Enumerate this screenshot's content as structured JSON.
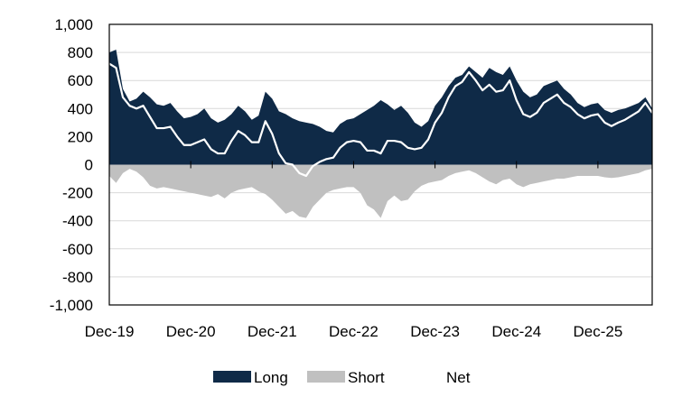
{
  "chart_data": {
    "type": "area",
    "title": "",
    "xlabel": "",
    "ylabel": "",
    "ylim": [
      -1000,
      1000
    ],
    "y_ticks": [
      1000,
      800,
      600,
      400,
      200,
      0,
      -200,
      -400,
      -600,
      -800,
      -1000
    ],
    "y_tick_labels": [
      "1,000",
      "800",
      "600",
      "400",
      "200",
      "0",
      "-200",
      "-400",
      "-600",
      "-800",
      "-1,000"
    ],
    "x_ticks": [
      "2019-12",
      "2020-12",
      "2021-12",
      "2022-12",
      "2023-12",
      "2024-12",
      "2025-12"
    ],
    "x_tick_labels": [
      "Dec-19",
      "Dec-20",
      "Dec-21",
      "Dec-22",
      "Dec-23",
      "Dec-24",
      "Dec-25"
    ],
    "x_range": [
      "2019-12",
      "2026-08"
    ],
    "grid": "horizontal",
    "legend_position": "bottom",
    "colors": {
      "long": "#0f2a47",
      "short": "#c0c0c0",
      "net": "#ffffff"
    },
    "x": [
      "2019-12",
      "2020-01",
      "2020-02",
      "2020-03",
      "2020-04",
      "2020-05",
      "2020-06",
      "2020-07",
      "2020-08",
      "2020-09",
      "2020-10",
      "2020-11",
      "2020-12",
      "2021-01",
      "2021-02",
      "2021-03",
      "2021-04",
      "2021-05",
      "2021-06",
      "2021-07",
      "2021-08",
      "2021-09",
      "2021-10",
      "2021-11",
      "2021-12",
      "2022-01",
      "2022-02",
      "2022-03",
      "2022-04",
      "2022-05",
      "2022-06",
      "2022-07",
      "2022-08",
      "2022-09",
      "2022-10",
      "2022-11",
      "2022-12",
      "2023-01",
      "2023-02",
      "2023-03",
      "2023-04",
      "2023-05",
      "2023-06",
      "2023-07",
      "2023-08",
      "2023-09",
      "2023-10",
      "2023-11",
      "2023-12",
      "2024-01",
      "2024-02",
      "2024-03",
      "2024-04",
      "2024-05",
      "2024-06",
      "2024-07",
      "2024-08",
      "2024-09",
      "2024-10",
      "2024-11",
      "2024-12",
      "2025-01",
      "2025-02",
      "2025-03",
      "2025-04",
      "2025-05",
      "2025-06",
      "2025-07",
      "2025-08",
      "2025-09",
      "2025-10",
      "2025-11",
      "2025-12",
      "2026-01",
      "2026-02",
      "2026-03",
      "2026-04",
      "2026-05",
      "2026-06",
      "2026-07",
      "2026-08"
    ],
    "series": [
      {
        "name": "Long",
        "values": [
          800,
          820,
          540,
          450,
          470,
          520,
          480,
          430,
          420,
          440,
          380,
          330,
          340,
          360,
          400,
          330,
          300,
          320,
          360,
          420,
          380,
          320,
          350,
          520,
          470,
          380,
          360,
          330,
          310,
          300,
          290,
          270,
          240,
          230,
          290,
          320,
          330,
          360,
          390,
          420,
          460,
          430,
          390,
          420,
          370,
          300,
          270,
          310,
          420,
          480,
          560,
          620,
          640,
          700,
          660,
          620,
          690,
          660,
          640,
          700,
          600,
          520,
          480,
          500,
          560,
          580,
          600,
          540,
          500,
          440,
          410,
          430,
          440,
          390,
          370,
          390,
          400,
          420,
          440,
          480,
          400
        ],
        "color": "#0f2a47"
      },
      {
        "name": "Short",
        "values": [
          -80,
          -130,
          -60,
          -30,
          -50,
          -90,
          -150,
          -170,
          -160,
          -170,
          -180,
          -190,
          -200,
          -210,
          -220,
          -230,
          -210,
          -240,
          -200,
          -180,
          -170,
          -160,
          -190,
          -210,
          -250,
          -300,
          -350,
          -330,
          -370,
          -380,
          -300,
          -250,
          -200,
          -180,
          -170,
          -160,
          -160,
          -200,
          -290,
          -320,
          -380,
          -260,
          -220,
          -260,
          -250,
          -190,
          -150,
          -130,
          -120,
          -110,
          -80,
          -60,
          -50,
          -40,
          -60,
          -90,
          -120,
          -140,
          -110,
          -100,
          -140,
          -160,
          -140,
          -130,
          -120,
          -110,
          -100,
          -100,
          -90,
          -80,
          -80,
          -80,
          -80,
          -90,
          -95,
          -90,
          -80,
          -70,
          -60,
          -40,
          -30
        ],
        "color": "#c0c0c0"
      },
      {
        "name": "Net",
        "values": [
          720,
          690,
          480,
          420,
          400,
          420,
          340,
          260,
          260,
          270,
          200,
          140,
          140,
          160,
          180,
          110,
          80,
          80,
          170,
          240,
          210,
          160,
          160,
          310,
          220,
          80,
          10,
          0,
          -60,
          -80,
          -10,
          20,
          40,
          50,
          120,
          160,
          170,
          160,
          100,
          100,
          80,
          170,
          170,
          160,
          120,
          110,
          120,
          180,
          300,
          370,
          480,
          560,
          590,
          660,
          600,
          530,
          570,
          520,
          530,
          600,
          460,
          360,
          340,
          370,
          440,
          470,
          500,
          440,
          410,
          360,
          330,
          350,
          360,
          300,
          275,
          300,
          320,
          350,
          380,
          440,
          370
        ],
        "color": "#ffffff"
      }
    ]
  }
}
